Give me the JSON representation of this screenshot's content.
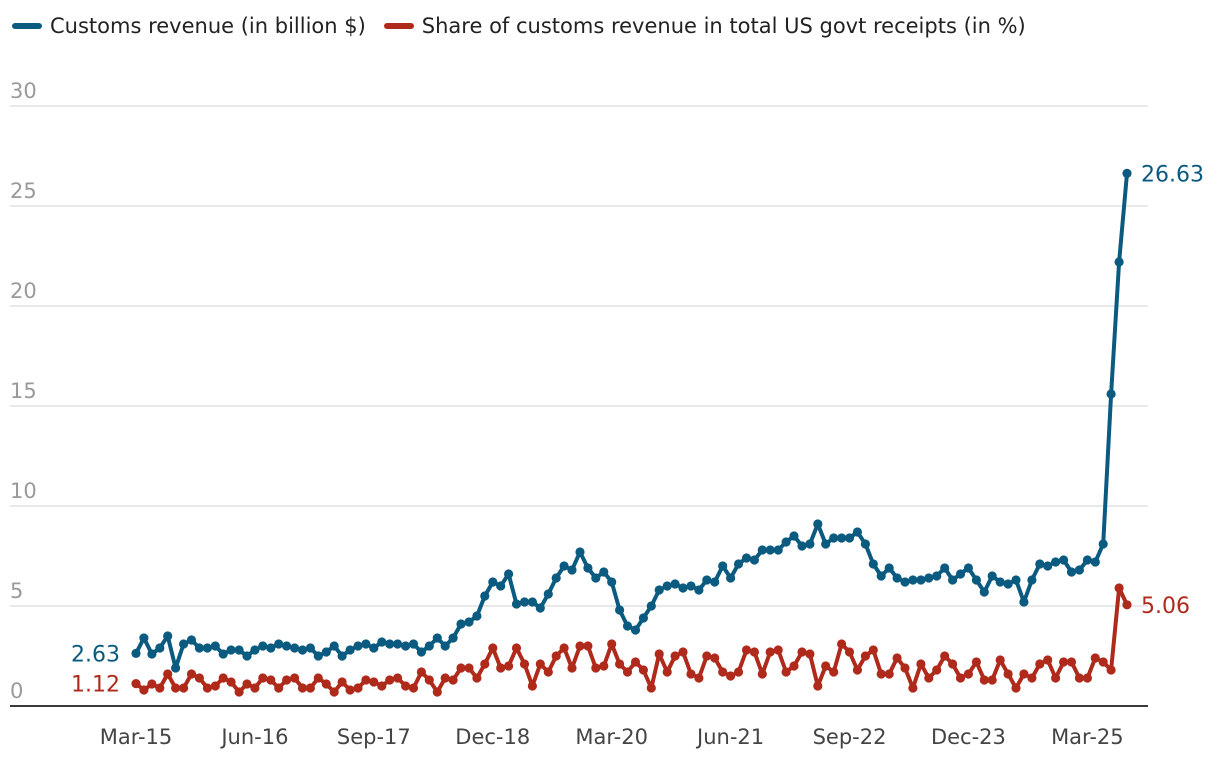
{
  "chart_data": {
    "type": "line",
    "title": "",
    "xlabel": "",
    "ylabel": "",
    "ylim": [
      0,
      30
    ],
    "yticks": [
      0,
      5,
      10,
      15,
      20,
      25,
      30
    ],
    "x_tick_labels": [
      "Mar-15",
      "Jun-16",
      "Sep-17",
      "Dec-18",
      "Mar-20",
      "Jun-21",
      "Sep-22",
      "Dec-23",
      "Mar-25"
    ],
    "legend": [
      {
        "name": "Customs revenue (in billion $)",
        "color": "#0b5a80"
      },
      {
        "name": "Share of customs revenue in total US govt receipts (in %)",
        "color": "#b02a1c"
      }
    ],
    "series": [
      {
        "name": "Customs revenue (in billion $)",
        "color": "#0b5a80",
        "start_label": "2.63",
        "end_label": "26.63",
        "values": [
          2.63,
          3.4,
          2.6,
          2.9,
          3.5,
          1.9,
          3.1,
          3.3,
          2.9,
          2.9,
          3.0,
          2.6,
          2.8,
          2.8,
          2.5,
          2.8,
          3.0,
          2.9,
          3.1,
          3.0,
          2.9,
          2.8,
          2.9,
          2.5,
          2.7,
          3.0,
          2.5,
          2.8,
          3.0,
          3.1,
          2.9,
          3.2,
          3.1,
          3.1,
          3.0,
          3.1,
          2.7,
          3.0,
          3.4,
          3.0,
          3.4,
          4.1,
          4.2,
          4.5,
          5.5,
          6.2,
          6.0,
          6.6,
          5.1,
          5.2,
          5.2,
          4.9,
          5.6,
          6.4,
          7.0,
          6.8,
          7.7,
          6.9,
          6.4,
          6.7,
          6.2,
          4.8,
          4.0,
          3.8,
          4.4,
          5.0,
          5.8,
          6.0,
          6.1,
          5.9,
          6.0,
          5.8,
          6.3,
          6.2,
          7.0,
          6.4,
          7.1,
          7.4,
          7.3,
          7.8,
          7.8,
          7.8,
          8.2,
          8.5,
          8.0,
          8.1,
          9.1,
          8.1,
          8.4,
          8.4,
          8.4,
          8.7,
          8.1,
          7.1,
          6.5,
          6.9,
          6.4,
          6.2,
          6.3,
          6.3,
          6.4,
          6.5,
          6.9,
          6.3,
          6.6,
          6.9,
          6.3,
          5.7,
          6.5,
          6.2,
          6.1,
          6.3,
          5.2,
          6.3,
          7.1,
          7.0,
          7.2,
          7.3,
          6.7,
          6.8,
          7.3,
          7.2,
          8.1,
          15.6,
          22.2,
          26.63
        ]
      },
      {
        "name": "Share of customs revenue in total US govt receipts (in %)",
        "color": "#b02a1c",
        "start_label": "1.12",
        "end_label": "5.06",
        "values": [
          1.12,
          0.8,
          1.1,
          0.9,
          1.6,
          0.9,
          0.9,
          1.6,
          1.4,
          0.9,
          1.0,
          1.4,
          1.2,
          0.7,
          1.1,
          0.9,
          1.4,
          1.3,
          0.9,
          1.3,
          1.4,
          0.9,
          0.9,
          1.4,
          1.1,
          0.7,
          1.2,
          0.8,
          0.9,
          1.3,
          1.2,
          1.0,
          1.3,
          1.4,
          1.0,
          0.9,
          1.7,
          1.3,
          0.7,
          1.4,
          1.3,
          1.9,
          1.9,
          1.4,
          2.1,
          2.9,
          1.9,
          2.0,
          2.9,
          2.1,
          1.0,
          2.1,
          1.7,
          2.5,
          2.9,
          1.9,
          3.0,
          3.0,
          1.9,
          2.0,
          3.1,
          2.1,
          1.7,
          2.2,
          1.8,
          0.9,
          2.6,
          1.7,
          2.5,
          2.7,
          1.6,
          1.4,
          2.5,
          2.4,
          1.7,
          1.5,
          1.7,
          2.8,
          2.7,
          1.6,
          2.7,
          2.8,
          1.7,
          2.0,
          2.7,
          2.6,
          1.0,
          2.0,
          1.7,
          3.1,
          2.7,
          1.8,
          2.5,
          2.8,
          1.6,
          1.6,
          2.4,
          1.9,
          0.9,
          2.1,
          1.4,
          1.8,
          2.5,
          2.1,
          1.4,
          1.6,
          2.2,
          1.3,
          1.3,
          2.3,
          1.6,
          0.9,
          1.6,
          1.4,
          2.1,
          2.3,
          1.4,
          2.2,
          2.2,
          1.4,
          1.4,
          2.4,
          2.2,
          1.8,
          5.9,
          5.06
        ]
      }
    ]
  }
}
